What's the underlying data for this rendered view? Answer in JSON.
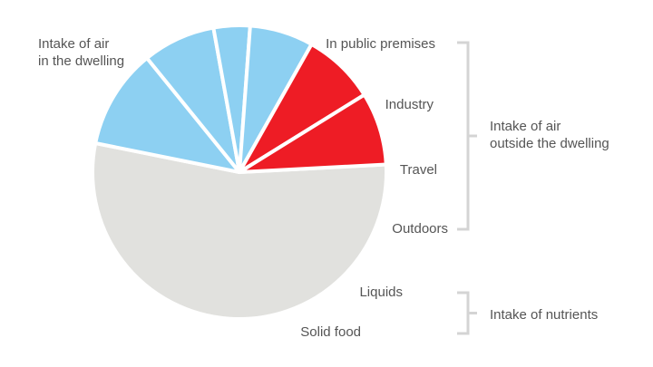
{
  "chart_data": {
    "type": "pie",
    "title": "",
    "slices": [
      {
        "label": "Intake of air in the dwelling",
        "label_lines": [
          "Intake of air",
          "in the dwelling"
        ],
        "value": 54,
        "color": "#e1e1de",
        "group": "dwelling"
      },
      {
        "label": "In public premises",
        "label_lines": [
          "In public premises"
        ],
        "value": 11,
        "color": "#8dd0f2",
        "group": "outside"
      },
      {
        "label": "Industry",
        "label_lines": [
          "Industry"
        ],
        "value": 8,
        "color": "#8dd0f2",
        "group": "outside"
      },
      {
        "label": "Travel",
        "label_lines": [
          "Travel"
        ],
        "value": 4,
        "color": "#8dd0f2",
        "group": "outside"
      },
      {
        "label": "Outdoors",
        "label_lines": [
          "Outdoors"
        ],
        "value": 7,
        "color": "#8dd0f2",
        "group": "outside"
      },
      {
        "label": "Liquids",
        "label_lines": [
          "Liquids"
        ],
        "value": 8,
        "color": "#ee1c25",
        "group": "nutrients"
      },
      {
        "label": "Solid food",
        "label_lines": [
          "Solid food"
        ],
        "value": 8,
        "color": "#ee1c25",
        "group": "nutrients"
      }
    ],
    "groups": [
      {
        "id": "outside",
        "label_lines": [
          "Intake of air",
          "outside the dwelling"
        ]
      },
      {
        "id": "nutrients",
        "label_lines": [
          "Intake of nutrients"
        ]
      }
    ],
    "colors": {
      "dwelling": "#e1e1de",
      "outside": "#8dd0f2",
      "nutrients": "#ee1c25",
      "separator": "#ffffff",
      "bracket": "#d4d4d4",
      "text": "#555555"
    },
    "legend": "none"
  }
}
